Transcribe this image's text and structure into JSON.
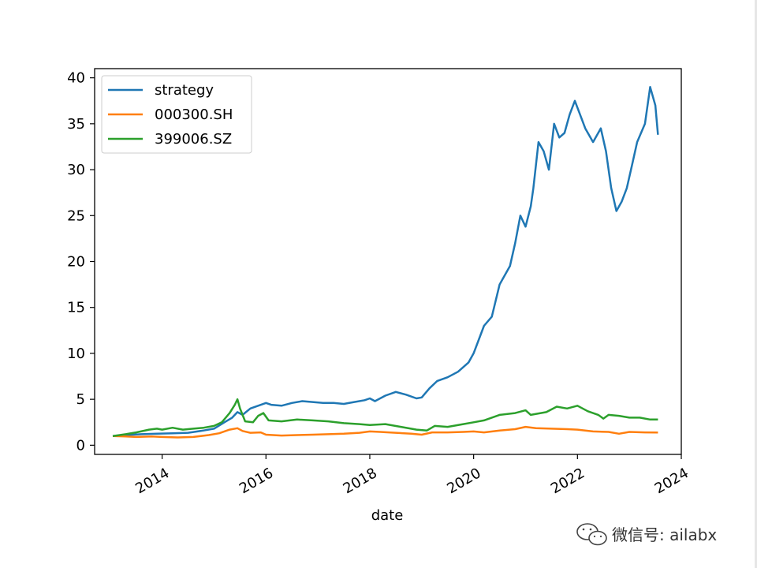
{
  "chart_data": {
    "type": "line",
    "xlabel": "date",
    "ylabel": "",
    "xlim": [
      2012.7,
      2024.0
    ],
    "ylim": [
      -1.0,
      41.0
    ],
    "x_ticks": [
      2014,
      2016,
      2018,
      2020,
      2022,
      2024
    ],
    "x_tick_labels": [
      "2014",
      "2016",
      "2018",
      "2020",
      "2022",
      "2024"
    ],
    "y_ticks": [
      0,
      5,
      10,
      15,
      20,
      25,
      30,
      35,
      40
    ],
    "y_tick_labels": [
      "0",
      "5",
      "10",
      "15",
      "20",
      "25",
      "30",
      "35",
      "40"
    ],
    "grid": false,
    "legend_position": "top-left",
    "series": [
      {
        "name": "strategy",
        "color": "#1f77b4",
        "points": [
          [
            2013.05,
            1.0
          ],
          [
            2013.3,
            1.1
          ],
          [
            2013.6,
            1.2
          ],
          [
            2013.9,
            1.25
          ],
          [
            2014.2,
            1.3
          ],
          [
            2014.5,
            1.35
          ],
          [
            2014.8,
            1.6
          ],
          [
            2015.0,
            1.8
          ],
          [
            2015.2,
            2.5
          ],
          [
            2015.35,
            3.0
          ],
          [
            2015.45,
            3.6
          ],
          [
            2015.55,
            3.3
          ],
          [
            2015.7,
            4.0
          ],
          [
            2015.85,
            4.3
          ],
          [
            2016.0,
            4.6
          ],
          [
            2016.1,
            4.4
          ],
          [
            2016.3,
            4.3
          ],
          [
            2016.5,
            4.6
          ],
          [
            2016.7,
            4.8
          ],
          [
            2016.9,
            4.7
          ],
          [
            2017.1,
            4.6
          ],
          [
            2017.3,
            4.6
          ],
          [
            2017.5,
            4.5
          ],
          [
            2017.7,
            4.7
          ],
          [
            2017.9,
            4.9
          ],
          [
            2018.0,
            5.1
          ],
          [
            2018.1,
            4.8
          ],
          [
            2018.3,
            5.4
          ],
          [
            2018.5,
            5.8
          ],
          [
            2018.7,
            5.5
          ],
          [
            2018.9,
            5.1
          ],
          [
            2019.0,
            5.2
          ],
          [
            2019.15,
            6.2
          ],
          [
            2019.3,
            7.0
          ],
          [
            2019.5,
            7.4
          ],
          [
            2019.7,
            8.0
          ],
          [
            2019.9,
            9.0
          ],
          [
            2020.0,
            10.0
          ],
          [
            2020.1,
            11.5
          ],
          [
            2020.2,
            13.0
          ],
          [
            2020.35,
            14.0
          ],
          [
            2020.5,
            17.5
          ],
          [
            2020.6,
            18.5
          ],
          [
            2020.7,
            19.5
          ],
          [
            2020.8,
            22.0
          ],
          [
            2020.9,
            25.0
          ],
          [
            2021.0,
            23.8
          ],
          [
            2021.1,
            26.0
          ],
          [
            2021.15,
            28.0
          ],
          [
            2021.25,
            33.0
          ],
          [
            2021.35,
            32.0
          ],
          [
            2021.45,
            30.0
          ],
          [
            2021.55,
            35.0
          ],
          [
            2021.65,
            33.5
          ],
          [
            2021.75,
            34.0
          ],
          [
            2021.85,
            36.0
          ],
          [
            2021.95,
            37.5
          ],
          [
            2022.05,
            36.0
          ],
          [
            2022.15,
            34.5
          ],
          [
            2022.3,
            33.0
          ],
          [
            2022.45,
            34.5
          ],
          [
            2022.55,
            32.0
          ],
          [
            2022.65,
            28.0
          ],
          [
            2022.75,
            25.5
          ],
          [
            2022.85,
            26.5
          ],
          [
            2022.95,
            28.0
          ],
          [
            2023.05,
            30.5
          ],
          [
            2023.15,
            33.0
          ],
          [
            2023.3,
            35.0
          ],
          [
            2023.4,
            39.0
          ],
          [
            2023.5,
            37.0
          ],
          [
            2023.55,
            33.8
          ]
        ]
      },
      {
        "name": "000300.SH",
        "color": "#ff7f0e",
        "points": [
          [
            2013.05,
            1.0
          ],
          [
            2013.3,
            0.95
          ],
          [
            2013.5,
            0.9
          ],
          [
            2013.8,
            0.95
          ],
          [
            2014.0,
            0.9
          ],
          [
            2014.3,
            0.85
          ],
          [
            2014.6,
            0.9
          ],
          [
            2014.9,
            1.1
          ],
          [
            2015.1,
            1.3
          ],
          [
            2015.3,
            1.7
          ],
          [
            2015.45,
            1.85
          ],
          [
            2015.55,
            1.55
          ],
          [
            2015.7,
            1.35
          ],
          [
            2015.9,
            1.4
          ],
          [
            2016.0,
            1.15
          ],
          [
            2016.3,
            1.05
          ],
          [
            2016.6,
            1.1
          ],
          [
            2016.9,
            1.15
          ],
          [
            2017.2,
            1.2
          ],
          [
            2017.5,
            1.25
          ],
          [
            2017.8,
            1.35
          ],
          [
            2018.0,
            1.5
          ],
          [
            2018.2,
            1.45
          ],
          [
            2018.5,
            1.35
          ],
          [
            2018.8,
            1.25
          ],
          [
            2019.0,
            1.15
          ],
          [
            2019.2,
            1.4
          ],
          [
            2019.5,
            1.4
          ],
          [
            2019.8,
            1.45
          ],
          [
            2020.0,
            1.5
          ],
          [
            2020.2,
            1.4
          ],
          [
            2020.5,
            1.6
          ],
          [
            2020.8,
            1.75
          ],
          [
            2021.0,
            2.0
          ],
          [
            2021.2,
            1.85
          ],
          [
            2021.5,
            1.8
          ],
          [
            2021.8,
            1.75
          ],
          [
            2022.0,
            1.7
          ],
          [
            2022.3,
            1.5
          ],
          [
            2022.6,
            1.45
          ],
          [
            2022.8,
            1.25
          ],
          [
            2023.0,
            1.45
          ],
          [
            2023.3,
            1.4
          ],
          [
            2023.55,
            1.38
          ]
        ]
      },
      {
        "name": "399006.SZ",
        "color": "#2ca02c",
        "points": [
          [
            2013.05,
            1.0
          ],
          [
            2013.3,
            1.2
          ],
          [
            2013.5,
            1.4
          ],
          [
            2013.75,
            1.7
          ],
          [
            2013.9,
            1.8
          ],
          [
            2014.0,
            1.7
          ],
          [
            2014.2,
            1.9
          ],
          [
            2014.4,
            1.7
          ],
          [
            2014.6,
            1.8
          ],
          [
            2014.8,
            1.9
          ],
          [
            2015.0,
            2.1
          ],
          [
            2015.15,
            2.5
          ],
          [
            2015.3,
            3.5
          ],
          [
            2015.4,
            4.4
          ],
          [
            2015.45,
            5.0
          ],
          [
            2015.5,
            4.0
          ],
          [
            2015.6,
            2.6
          ],
          [
            2015.75,
            2.5
          ],
          [
            2015.85,
            3.2
          ],
          [
            2015.95,
            3.5
          ],
          [
            2016.05,
            2.7
          ],
          [
            2016.3,
            2.6
          ],
          [
            2016.6,
            2.8
          ],
          [
            2016.9,
            2.7
          ],
          [
            2017.2,
            2.6
          ],
          [
            2017.5,
            2.4
          ],
          [
            2017.8,
            2.3
          ],
          [
            2018.0,
            2.2
          ],
          [
            2018.3,
            2.3
          ],
          [
            2018.6,
            2.0
          ],
          [
            2018.9,
            1.7
          ],
          [
            2019.1,
            1.6
          ],
          [
            2019.25,
            2.1
          ],
          [
            2019.5,
            2.0
          ],
          [
            2019.8,
            2.3
          ],
          [
            2020.0,
            2.5
          ],
          [
            2020.2,
            2.7
          ],
          [
            2020.5,
            3.3
          ],
          [
            2020.8,
            3.5
          ],
          [
            2021.0,
            3.8
          ],
          [
            2021.1,
            3.3
          ],
          [
            2021.4,
            3.6
          ],
          [
            2021.6,
            4.2
          ],
          [
            2021.8,
            4.0
          ],
          [
            2022.0,
            4.3
          ],
          [
            2022.2,
            3.7
          ],
          [
            2022.4,
            3.3
          ],
          [
            2022.5,
            2.9
          ],
          [
            2022.6,
            3.3
          ],
          [
            2022.8,
            3.2
          ],
          [
            2023.0,
            3.0
          ],
          [
            2023.2,
            3.0
          ],
          [
            2023.4,
            2.8
          ],
          [
            2023.55,
            2.8
          ]
        ]
      }
    ]
  },
  "watermark": {
    "icon": "wechat-icon",
    "text": "微信号: ailabx"
  }
}
